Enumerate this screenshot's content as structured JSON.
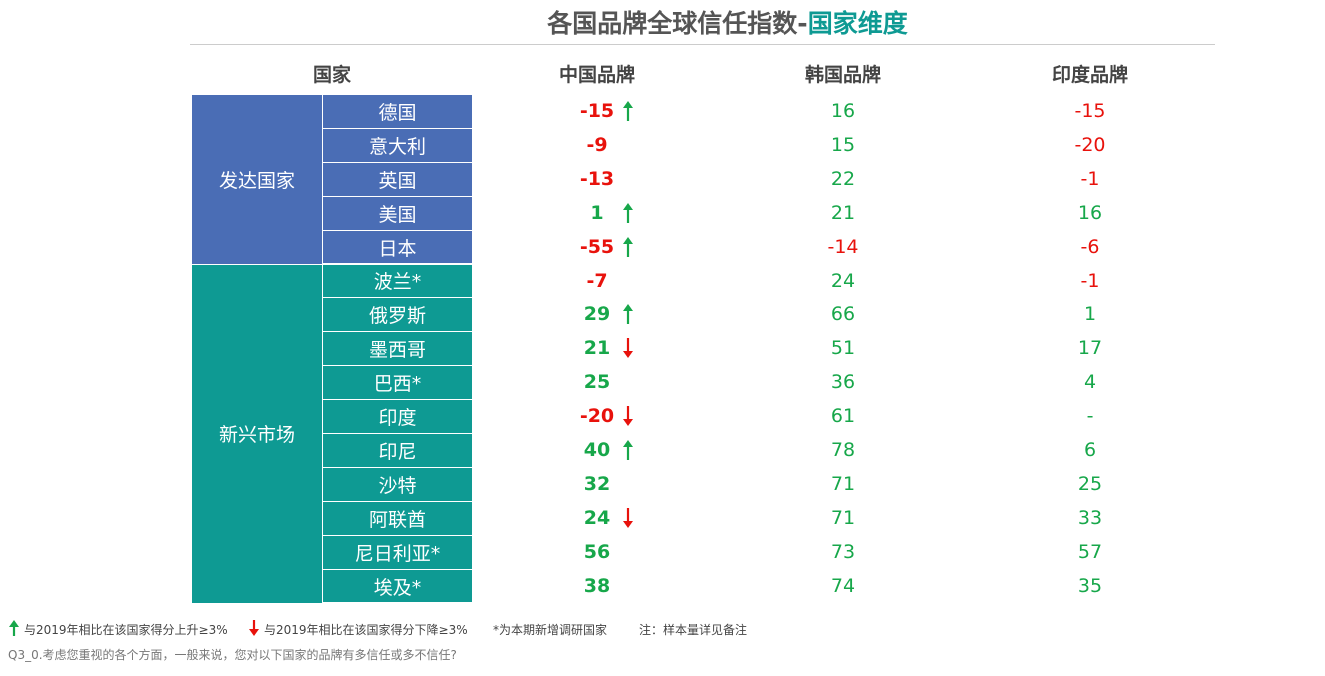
{
  "title": {
    "main": "各国品牌全球信任指数-",
    "highlight": "国家维度"
  },
  "table": {
    "columns": [
      "国家",
      "中国品牌",
      "韩国品牌",
      "印度品牌"
    ],
    "groups": [
      {
        "name": "发达国家",
        "color": "#4a6db5",
        "rows": [
          {
            "country": "德国",
            "china": -15,
            "trend": "up",
            "korea": 16,
            "india": -15
          },
          {
            "country": "意大利",
            "china": -9,
            "korea": 15,
            "india": -20
          },
          {
            "country": "英国",
            "china": -13,
            "korea": 22,
            "india": -1
          },
          {
            "country": "美国",
            "china": 1,
            "trend": "up",
            "korea": 21,
            "india": 16
          },
          {
            "country": "日本",
            "china": -55,
            "trend": "up",
            "korea": -14,
            "india": -6
          }
        ]
      },
      {
        "name": "新兴市场",
        "color": "#0e9a93",
        "rows": [
          {
            "country": "波兰*",
            "china": -7,
            "korea": 24,
            "india": -1
          },
          {
            "country": "俄罗斯",
            "china": 29,
            "trend": "up",
            "korea": 66,
            "india": 1
          },
          {
            "country": "墨西哥",
            "china": 21,
            "trend": "down",
            "korea": 51,
            "india": 17
          },
          {
            "country": "巴西*",
            "china": 25,
            "korea": 36,
            "india": 4
          },
          {
            "country": "印度",
            "china": -20,
            "trend": "down",
            "korea": 61,
            "india": "-"
          },
          {
            "country": "印尼",
            "china": 40,
            "trend": "up",
            "korea": 78,
            "india": 6
          },
          {
            "country": "沙特",
            "china": 32,
            "korea": 71,
            "india": 25
          },
          {
            "country": "阿联酋",
            "china": 24,
            "trend": "down",
            "korea": 71,
            "india": 33
          },
          {
            "country": "尼日利亚*",
            "china": 56,
            "korea": 73,
            "india": 57
          },
          {
            "country": "埃及*",
            "china": 38,
            "korea": 74,
            "india": 35
          }
        ]
      }
    ]
  },
  "footer": {
    "legend": [
      {
        "trend": "up",
        "text": "与2019年相比在该国家得分上升≥3%"
      },
      {
        "trend": "down",
        "text": "与2019年相比在该国家得分下降≥3%"
      }
    ],
    "notes": [
      "*为本期新增调研国家",
      "注：样本量详见备注"
    ],
    "question": "Q3_0.考虑您重视的各个方面，一般来说，您对以下国家的品牌有多信任或多不信任?"
  }
}
